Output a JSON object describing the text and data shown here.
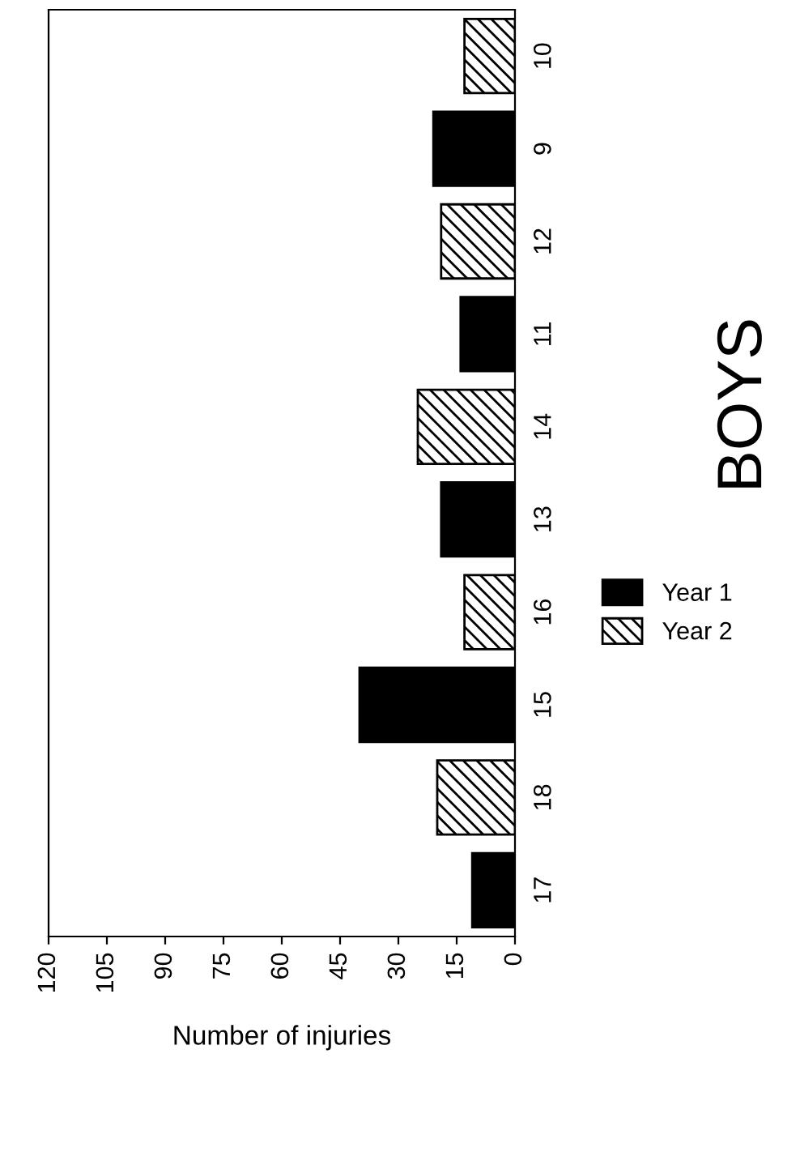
{
  "chart_data": {
    "type": "bar",
    "orientation": "horizontal",
    "title": "BOYS",
    "xlabel": "Number of injuries",
    "categories": [
      "10",
      "9",
      "12",
      "11",
      "14",
      "13",
      "16",
      "15",
      "18",
      "17"
    ],
    "series": [
      {
        "name": "Year 1",
        "color": "#000000",
        "values": [
          null,
          21,
          null,
          14,
          null,
          19,
          null,
          40,
          null,
          11
        ]
      },
      {
        "name": "Year 2",
        "color": "#000000",
        "values": [
          13,
          null,
          19,
          null,
          25,
          null,
          13,
          null,
          20,
          null
        ]
      }
    ],
    "xlim": [
      120,
      0
    ],
    "xticks": [
      0,
      15,
      30,
      45,
      60,
      75,
      90,
      105,
      120
    ],
    "grid": false,
    "legend": "right"
  }
}
